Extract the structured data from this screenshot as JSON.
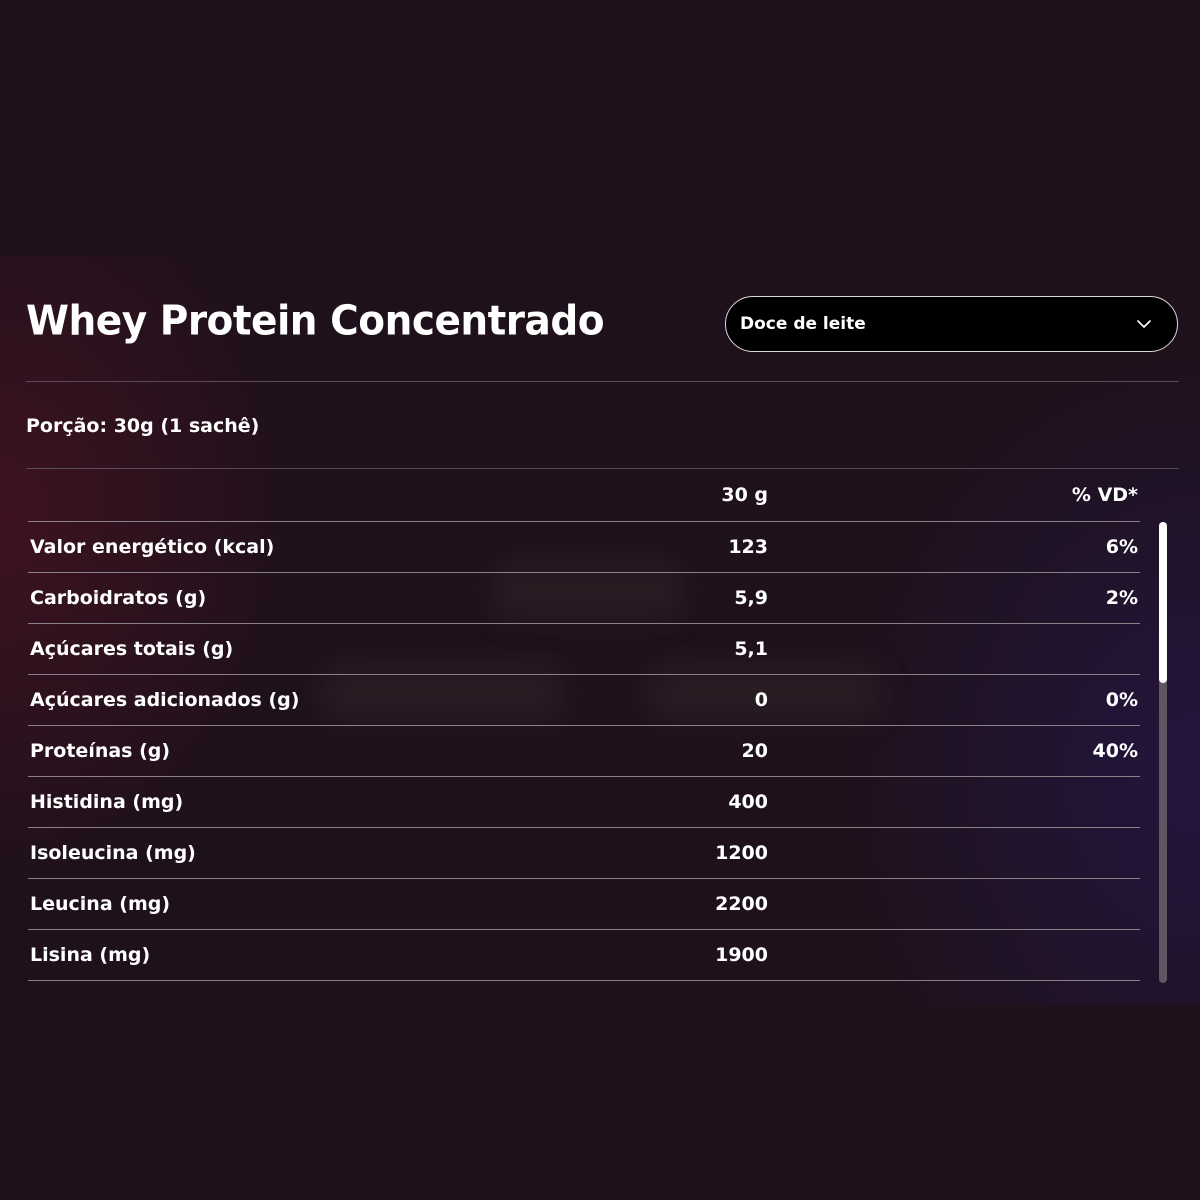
{
  "product": {
    "title": "Whey Protein Concentrado"
  },
  "flavor_select": {
    "selected": "Doce de leite",
    "icon": "chevron-down-icon"
  },
  "portion": {
    "label": "Porção: 30g (1 sachê)"
  },
  "table": {
    "headers": {
      "amount": "30 g",
      "daily_value": "% VD*"
    },
    "rows": [
      {
        "nutrient": "Valor energético (kcal)",
        "amount": "123",
        "daily_value": "6%"
      },
      {
        "nutrient": "Carboidratos (g)",
        "amount": "5,9",
        "daily_value": "2%"
      },
      {
        "nutrient": "Açúcares totais (g)",
        "amount": "5,1",
        "daily_value": ""
      },
      {
        "nutrient": "Açúcares adicionados (g)",
        "amount": "0",
        "daily_value": "0%"
      },
      {
        "nutrient": "Proteínas (g)",
        "amount": "20",
        "daily_value": "40%"
      },
      {
        "nutrient": "Histidina (mg)",
        "amount": "400",
        "daily_value": ""
      },
      {
        "nutrient": "Isoleucina (mg)",
        "amount": "1200",
        "daily_value": ""
      },
      {
        "nutrient": "Leucina (mg)",
        "amount": "2200",
        "daily_value": ""
      },
      {
        "nutrient": "Lisina (mg)",
        "amount": "1900",
        "daily_value": ""
      }
    ]
  },
  "scrollbar": {
    "position_fraction": 0.0,
    "visible_fraction": 0.35
  },
  "colors": {
    "background": "#21111d",
    "text": "#ffffff",
    "select_background": "#000000",
    "divider": "#8a8088"
  }
}
